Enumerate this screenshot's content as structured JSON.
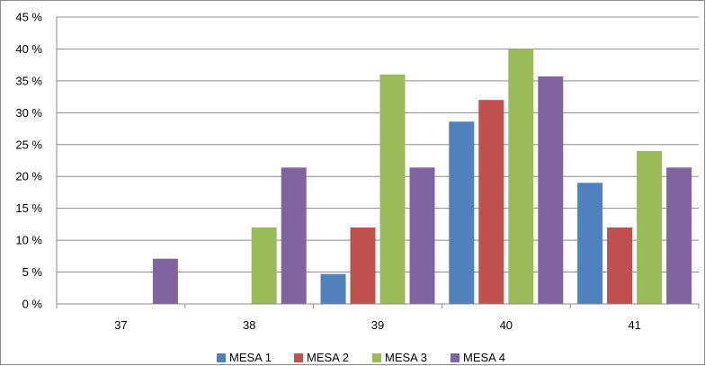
{
  "chart_data": {
    "type": "bar",
    "categories": [
      "37",
      "38",
      "39",
      "40",
      "41"
    ],
    "series": [
      {
        "name": "MESA 1",
        "color": "#4F81BD",
        "values": [
          0,
          0,
          4.7,
          28.6,
          19.0
        ]
      },
      {
        "name": "MESA 2",
        "color": "#C0504D",
        "values": [
          0,
          0,
          12.0,
          32.0,
          12.0
        ]
      },
      {
        "name": "MESA 3",
        "color": "#9BBB59",
        "values": [
          0,
          12.0,
          36.0,
          40.0,
          24.0
        ]
      },
      {
        "name": "MESA 4",
        "color": "#8064A2",
        "values": [
          7.1,
          21.4,
          21.4,
          35.7,
          21.4
        ]
      }
    ],
    "y_ticks": [
      "0 %",
      "5 %",
      "10 %",
      "15 %",
      "20 %",
      "25 %",
      "30 %",
      "35 %",
      "40 %",
      "45 %"
    ],
    "ylim": [
      0,
      45
    ],
    "grid": true,
    "legend_position": "bottom"
  }
}
